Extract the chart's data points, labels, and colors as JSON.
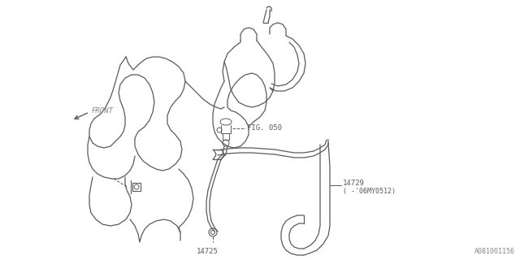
{
  "bg_color": "#ffffff",
  "line_color": "#5a5a5a",
  "text_color": "#5a5a5a",
  "border_color": "#cccccc",
  "label_fig050": "FIG. 050",
  "label_14725": "14725",
  "label_14729": "14729",
  "label_14729_sub": "( -'06MY0512)",
  "label_front": "FRONT",
  "watermark": "A081001156",
  "fig_width": 6.4,
  "fig_height": 3.2,
  "dpi": 100
}
